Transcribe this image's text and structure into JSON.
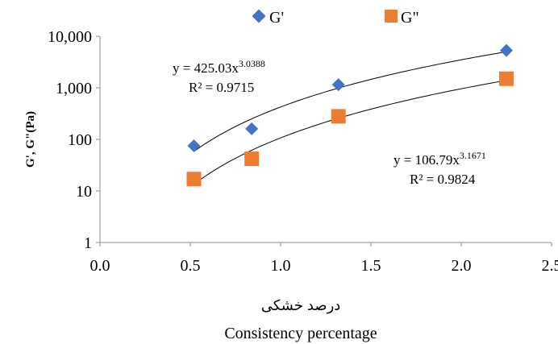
{
  "chart_data": {
    "type": "scatter",
    "y_scale": "log",
    "xlim": [
      0,
      2.5
    ],
    "ylim": [
      1,
      10000
    ],
    "x_ticks": [
      "0.0",
      "0.5",
      "1.0",
      "1.5",
      "2.0",
      "2.5"
    ],
    "y_ticks": [
      "1",
      "10",
      "100",
      "1,000",
      "10,000"
    ],
    "ylabel": "G', G\"(Pa)",
    "xlabel_fa": "درصد خشکی",
    "xlabel": "Consistency percentage",
    "grid": false,
    "legend_position": "top",
    "series": [
      {
        "name": "G'",
        "marker": "diamond",
        "color": "#4472C4",
        "x": [
          0.52,
          0.84,
          1.32,
          2.25
        ],
        "y": [
          75,
          160,
          1150,
          5300
        ],
        "trendline": {
          "type": "power",
          "a": 425.03,
          "b": 3.0388
        },
        "equation_main": "y = 425.03x",
        "equation_exp": "3.0388",
        "r2": "R² = 0.9715"
      },
      {
        "name": "G\"",
        "marker": "square",
        "color": "#ED7D31",
        "x": [
          0.52,
          0.84,
          1.32,
          2.25
        ],
        "y": [
          17,
          42,
          280,
          1500
        ],
        "trendline": {
          "type": "power",
          "a": 106.79,
          "b": 3.1671
        },
        "equation_main": "y = 106.79x",
        "equation_exp": "3.1671",
        "r2": "R² = 0.9824"
      }
    ]
  }
}
